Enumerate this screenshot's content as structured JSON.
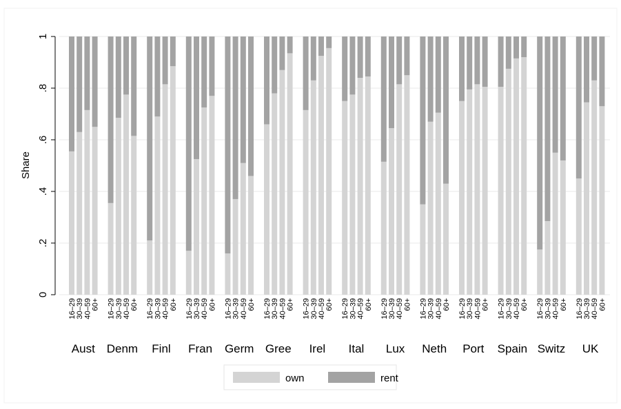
{
  "chart_data": {
    "type": "bar",
    "stacked": true,
    "ylabel": "Share",
    "ylim": [
      0,
      1
    ],
    "yticks": [
      {
        "value": 0,
        "label": "0"
      },
      {
        "value": 0.2,
        "label": ".2"
      },
      {
        "value": 0.4,
        "label": ".4"
      },
      {
        "value": 0.6,
        "label": ".6"
      },
      {
        "value": 0.8,
        "label": ".8"
      },
      {
        "value": 1,
        "label": "1"
      }
    ],
    "grid": true,
    "legend_position": "bottom",
    "age_groups": [
      "16–29",
      "30–39",
      "40–59",
      "60+"
    ],
    "countries": [
      "Aust",
      "Denm",
      "Finl",
      "Fran",
      "Germ",
      "Gree",
      "Irel",
      "Ital",
      "Lux",
      "Neth",
      "Port",
      "Spain",
      "Switz",
      "UK"
    ],
    "series": [
      {
        "name": "own",
        "color": "#d4d4d4",
        "values": [
          [
            0.555,
            0.63,
            0.715,
            0.65
          ],
          [
            0.355,
            0.685,
            0.775,
            0.615
          ],
          [
            0.21,
            0.69,
            0.815,
            0.885
          ],
          [
            0.17,
            0.525,
            0.725,
            0.77
          ],
          [
            0.16,
            0.37,
            0.51,
            0.46
          ],
          [
            0.66,
            0.78,
            0.87,
            0.935
          ],
          [
            0.715,
            0.83,
            0.925,
            0.955
          ],
          [
            0.75,
            0.775,
            0.84,
            0.845
          ],
          [
            0.515,
            0.645,
            0.815,
            0.85
          ],
          [
            0.35,
            0.67,
            0.705,
            0.43
          ],
          [
            0.75,
            0.795,
            0.815,
            0.805
          ],
          [
            0.805,
            0.875,
            0.915,
            0.92
          ],
          [
            0.175,
            0.285,
            0.55,
            0.52
          ],
          [
            0.45,
            0.745,
            0.83,
            0.73
          ]
        ]
      },
      {
        "name": "rent",
        "color": "#a3a3a3",
        "values": [
          [
            0.445,
            0.37,
            0.285,
            0.35
          ],
          [
            0.645,
            0.315,
            0.225,
            0.385
          ],
          [
            0.79,
            0.31,
            0.185,
            0.115
          ],
          [
            0.83,
            0.475,
            0.275,
            0.23
          ],
          [
            0.84,
            0.63,
            0.49,
            0.54
          ],
          [
            0.34,
            0.22,
            0.13,
            0.065
          ],
          [
            0.285,
            0.17,
            0.075,
            0.045
          ],
          [
            0.25,
            0.225,
            0.16,
            0.155
          ],
          [
            0.485,
            0.355,
            0.185,
            0.15
          ],
          [
            0.65,
            0.33,
            0.295,
            0.57
          ],
          [
            0.25,
            0.205,
            0.185,
            0.195
          ],
          [
            0.195,
            0.125,
            0.085,
            0.08
          ],
          [
            0.825,
            0.715,
            0.45,
            0.48
          ],
          [
            0.55,
            0.255,
            0.17,
            0.27
          ]
        ]
      }
    ],
    "legend": [
      {
        "label": "own",
        "color": "#d4d4d4"
      },
      {
        "label": "rent",
        "color": "#a3a3a3"
      }
    ]
  }
}
